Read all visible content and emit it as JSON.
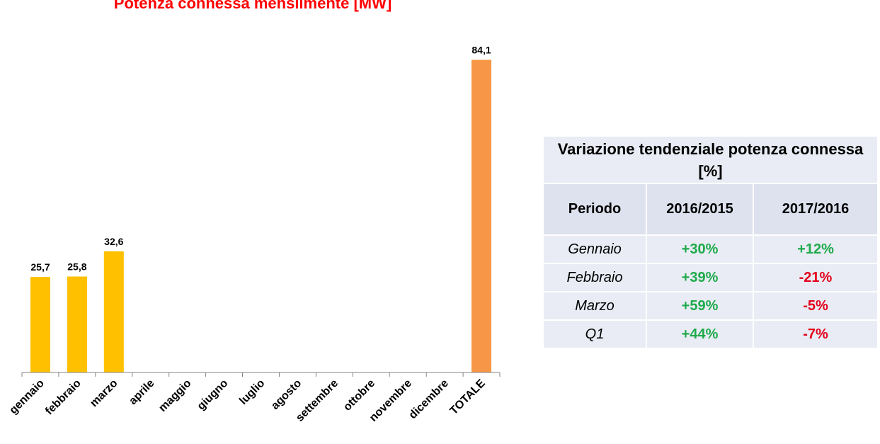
{
  "chart_data": {
    "type": "bar",
    "title": "Potenza connessa mensilmente [MW]",
    "categories": [
      "gennaio",
      "febbraio",
      "marzo",
      "aprile",
      "maggio",
      "giugno",
      "luglio",
      "agosto",
      "settembre",
      "ottobre",
      "novembre",
      "dicembre",
      "TOTALE"
    ],
    "values": [
      25.7,
      25.8,
      32.6,
      null,
      null,
      null,
      null,
      null,
      null,
      null,
      null,
      null,
      84.1
    ],
    "value_labels": [
      "25,7",
      "25,8",
      "32,6",
      "",
      "",
      "",
      "",
      "",
      "",
      "",
      "",
      "",
      "84,1"
    ],
    "colors": [
      "#ffc000",
      "#ffc000",
      "#ffc000",
      "#ffc000",
      "#ffc000",
      "#ffc000",
      "#ffc000",
      "#ffc000",
      "#ffc000",
      "#ffc000",
      "#ffc000",
      "#ffc000",
      "#f79646"
    ],
    "ylim": [
      0,
      88
    ],
    "grid": false,
    "legend": "none"
  },
  "table": {
    "title": "Variazione tendenziale potenza connessa [%]",
    "headers": [
      "Periodo",
      "2016/2015",
      "2017/2016"
    ],
    "rows": [
      {
        "period": "Gennaio",
        "v2016": "+30%",
        "v2017": "+12%"
      },
      {
        "period": "Febbraio",
        "v2016": "+39%",
        "v2017": "-21%"
      },
      {
        "period": "Marzo",
        "v2016": "+59%",
        "v2017": "-5%"
      },
      {
        "period": "Q1",
        "v2016": "+44%",
        "v2017": "-7%"
      }
    ],
    "positive_color": "#1faa4b",
    "negative_color": "#e3001b"
  }
}
